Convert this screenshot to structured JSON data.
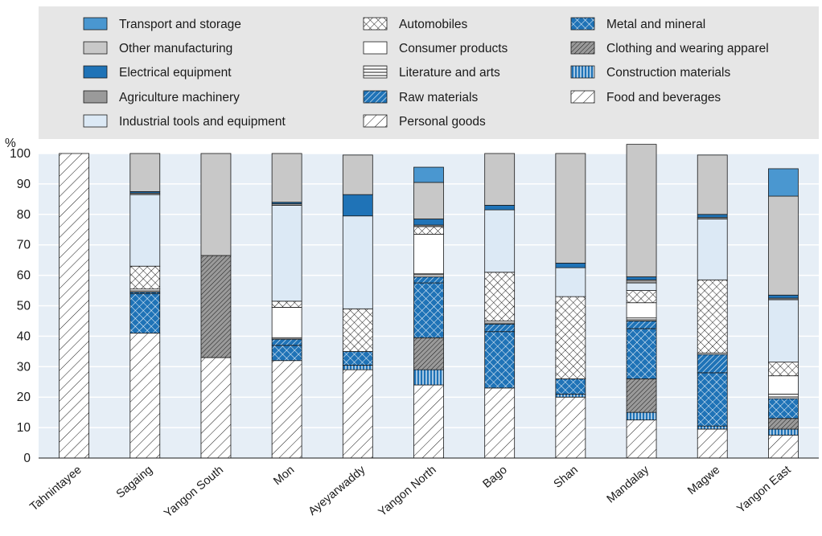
{
  "chart_data": {
    "type": "bar",
    "stacked": true,
    "title": "",
    "xlabel": "",
    "ylabel": "%",
    "ylim": [
      0,
      100
    ],
    "yticks": [
      0,
      10,
      20,
      30,
      40,
      50,
      60,
      70,
      80,
      90,
      100
    ],
    "grid": true,
    "legend_position": "top",
    "categories": [
      "Tahnintayee",
      "Sagaing",
      "Yangon South",
      "Mon",
      "Ayeyarwaddy",
      "Yangon North",
      "Bago",
      "Shan",
      "Mandalay",
      "Magwe",
      "Yangon East"
    ],
    "series": [
      {
        "name": "Food and beverages",
        "fill": "diag",
        "values": [
          0,
          41,
          0,
          32,
          29,
          24,
          23,
          20,
          12.5,
          9.5,
          7.5
        ]
      },
      {
        "name": "Personal goods",
        "fill": "diag",
        "values": [
          100,
          0,
          33,
          0,
          0,
          0,
          0,
          0,
          0,
          0,
          0
        ]
      },
      {
        "name": "Construction materials",
        "fill": "vstripe",
        "values": [
          0,
          0,
          0,
          0,
          1.5,
          5,
          0,
          1,
          2.5,
          1,
          2
        ]
      },
      {
        "name": "Clothing and wearing apparel",
        "fill": "darkdiag",
        "values": [
          0,
          0,
          33.5,
          0,
          0,
          10.5,
          0,
          0,
          11,
          0,
          3.5
        ]
      },
      {
        "name": "Metal and mineral",
        "fill": "bluecross",
        "values": [
          0,
          13,
          0,
          5,
          4.5,
          18,
          18.5,
          5,
          16.5,
          17.5,
          6.5
        ]
      },
      {
        "name": "Raw materials",
        "fill": "bluediag",
        "values": [
          0,
          0.5,
          0,
          2,
          0,
          2,
          2.5,
          0,
          2.5,
          6,
          0
        ]
      },
      {
        "name": "Literature and arts",
        "fill": "hstripe",
        "values": [
          0,
          1,
          0,
          0.5,
          0,
          1,
          1,
          0,
          1,
          0.5,
          1.5
        ]
      },
      {
        "name": "Consumer products",
        "fill": "white",
        "values": [
          0,
          0,
          0,
          10,
          0,
          13,
          0,
          0,
          5,
          0,
          6
        ]
      },
      {
        "name": "Automobiles",
        "fill": "crosshatch",
        "values": [
          0,
          7.5,
          0,
          2,
          14,
          2.5,
          16,
          27,
          4,
          24,
          4.5
        ]
      },
      {
        "name": "Industrial tools and equipment",
        "fill": "lightblue",
        "values": [
          0,
          23.5,
          0,
          31.5,
          30.5,
          0,
          20.5,
          9.5,
          2.5,
          20,
          20.5
        ]
      },
      {
        "name": "Agriculture machinery",
        "fill": "darkgray",
        "values": [
          0,
          0.5,
          0,
          0.5,
          0,
          0.5,
          0,
          0,
          1,
          0.5,
          0.5
        ]
      },
      {
        "name": "Electrical equipment",
        "fill": "blue",
        "values": [
          0,
          0.5,
          0,
          0.5,
          7,
          2,
          1.5,
          1.5,
          1,
          1,
          1
        ]
      },
      {
        "name": "Other manufacturing",
        "fill": "lightgray",
        "values": [
          0,
          12.5,
          33.5,
          16,
          13,
          12,
          17,
          36,
          43.5,
          19.5,
          32.5
        ]
      },
      {
        "name": "Transport and storage",
        "fill": "medblue",
        "values": [
          0,
          0,
          0,
          0,
          0,
          5,
          0,
          0,
          0,
          0,
          9
        ]
      }
    ],
    "legend_columns": [
      [
        "Transport and storage",
        "Other manufacturing",
        "Electrical equipment",
        "Agriculture machinery",
        "Industrial tools and equipment"
      ],
      [
        "Automobiles",
        "Consumer products",
        "Literature and arts",
        "Raw materials",
        "Personal goods"
      ],
      [
        "Metal and mineral",
        "Clothing and wearing apparel",
        "Construction materials",
        "Food and beverages"
      ]
    ]
  },
  "colors": {
    "panel_bg": "#e6eef6",
    "legend_bg": "#e6e6e6",
    "blue": "#1f73b7",
    "medium_blue": "#4a97d0",
    "light_blue": "#dce9f5",
    "light_gray": "#c8c8c8",
    "dark_gray": "#9a9a9a"
  }
}
